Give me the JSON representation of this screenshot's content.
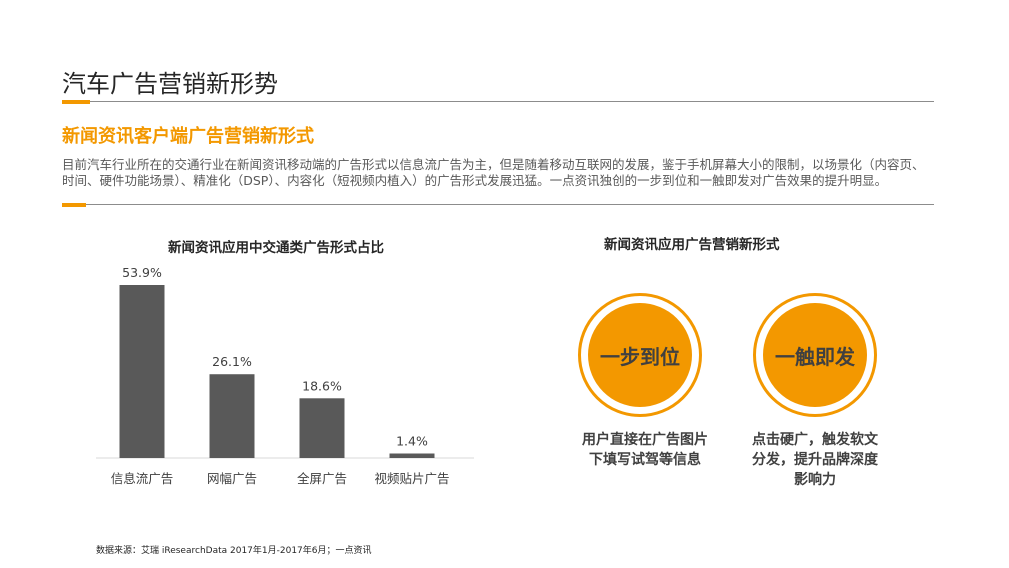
{
  "page": {
    "title": "汽车广告营销新形势",
    "section_heading": "新闻资讯客户端广告营销新形式",
    "intro_line1": "目前汽车行业所在的交通行业在新闻资讯移动端的广告形式以信息流广告为主，但是随着移动互联网的发展，鉴于手机屏幕大小的限制，以场景化（内容页、",
    "intro_line2": "时间、硬件功能场景）、精准化（DSP）、内容化（短视频内植入）的广告形式发展迅猛。一点资讯独创的一步到位和一触即发对广告效果的提升明显。",
    "source": "数据来源：艾瑞 iResearchData 2017年1月-2017年6月；一点资讯"
  },
  "colors": {
    "accent": "#f39800",
    "bar": "#595959",
    "rule": "#8c8c8c"
  },
  "chart_data": {
    "type": "bar",
    "title": "新闻资讯应用中交通类广告形式占比",
    "categories": [
      "信息流广告",
      "网幅广告",
      "全屏广告",
      "视频贴片广告"
    ],
    "values": [
      53.9,
      26.1,
      18.6,
      1.4
    ],
    "value_labels": [
      "53.9%",
      "26.1%",
      "18.6%",
      "1.4%"
    ],
    "ylim": [
      0,
      60
    ],
    "grid": false,
    "xlabel": "",
    "ylabel": ""
  },
  "right_panel": {
    "heading": "新闻资讯应用广告营销新形式",
    "items": [
      {
        "badge": "一步到位",
        "caption_lines": [
          "用户直接在广告图片",
          "下填写试驾等信息"
        ]
      },
      {
        "badge": "一触即发",
        "caption_lines": [
          "点击硬广，触发软文",
          "分发，提升品牌深度",
          "影响力"
        ]
      }
    ]
  }
}
